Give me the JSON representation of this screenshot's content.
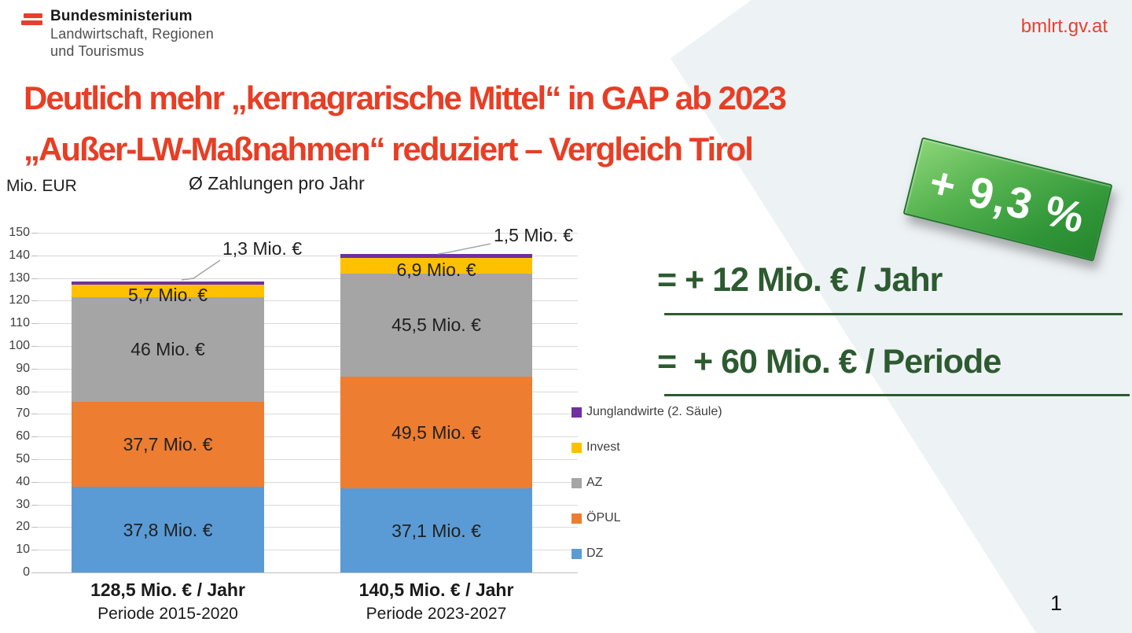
{
  "header": {
    "logo": {
      "line1": "Bundesministerium",
      "line2": "Landwirtschaft, Regionen",
      "line3": "und Tourismus"
    },
    "website": "bmlrt.gv.at"
  },
  "title": {
    "line1": "Deutlich mehr „kernagrarische Mittel“ in GAP ab 2023",
    "line2": "„Außer-LW-Maßnahmen“ reduziert – Vergleich Tirol"
  },
  "badge": {
    "text": "+ 9,3 %"
  },
  "summary": {
    "line1": "= + 12 Mio. € / Jahr",
    "line2": "=  + 60 Mio. € / Periode"
  },
  "page_number": "1",
  "colors": {
    "accent_red": "#e73e25",
    "accent_green": "#2d5a30",
    "badge_green": "#3f9e41",
    "background_band": "#edf2f5",
    "logo_red": "#e5402d"
  },
  "chart_data": {
    "type": "bar",
    "stacked": true,
    "unit_label": "Mio. EUR",
    "title": "Ø Zahlungen pro Jahr",
    "ylim": [
      0,
      150
    ],
    "yticks": [
      0,
      10,
      20,
      30,
      40,
      50,
      60,
      70,
      80,
      90,
      100,
      110,
      120,
      130,
      140,
      150
    ],
    "grid": true,
    "legend_position": "right",
    "categories": [
      {
        "line1": "128,5 Mio. € / Jahr",
        "line2": "Periode 2015-2020",
        "total": 128.5
      },
      {
        "line1": "140,5 Mio. € / Jahr",
        "line2": "Periode 2023-2027",
        "total": 140.5
      }
    ],
    "series": [
      {
        "name": "DZ",
        "color": "#5b9bd5",
        "values": [
          37.8,
          37.1
        ],
        "labels": [
          "37,8 Mio. €",
          "37,1 Mio. €"
        ]
      },
      {
        "name": "ÖPUL",
        "color": "#ed7d31",
        "values": [
          37.7,
          49.5
        ],
        "labels": [
          "37,7 Mio. €",
          "49,5 Mio. €"
        ]
      },
      {
        "name": "AZ",
        "color": "#a5a5a5",
        "values": [
          46,
          45.5
        ],
        "labels": [
          "46 Mio. €",
          "45,5 Mio. €"
        ]
      },
      {
        "name": "Invest",
        "color": "#ffc000",
        "values": [
          5.7,
          6.9
        ],
        "labels": [
          "5,7 Mio. €",
          "6,9 Mio. €"
        ]
      },
      {
        "name": "Junglandwirte (2. Säule)",
        "color": "#7030a0",
        "values": [
          1.3,
          1.5
        ],
        "labels": [
          "1,3 Mio. €",
          "1,5 Mio. €"
        ],
        "callout": true
      }
    ],
    "legend": [
      "Junglandwirte (2. Säule)",
      "Invest",
      "AZ",
      "ÖPUL",
      "DZ"
    ]
  }
}
